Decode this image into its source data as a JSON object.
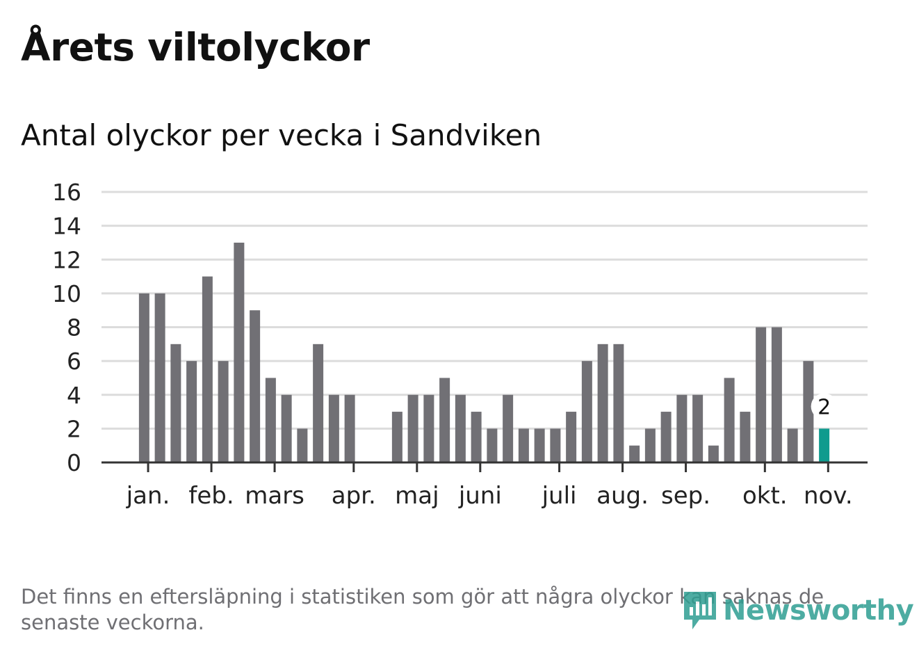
{
  "title": "Årets viltolyckor",
  "subtitle": "Antal olyckor per vecka i Sandviken",
  "footnote": "Det finns en eftersläpning i statistiken som gör att några olyckor kan saknas de senaste veckorna.",
  "brand": {
    "name": "Newsworthy",
    "color": "#2f9e92",
    "icon": "newsworthy-logo-icon"
  },
  "colors": {
    "bar": "#717075",
    "highlight": "#0f9b8e",
    "grid": "#dcdcdc",
    "axis": "#333333"
  },
  "chart_data": {
    "type": "bar",
    "title": "Antal olyckor per vecka i Sandviken",
    "xlabel": "",
    "ylabel": "",
    "ylim": [
      0,
      16
    ],
    "yticks": [
      0,
      2,
      4,
      6,
      8,
      10,
      12,
      14,
      16
    ],
    "grid": true,
    "weeks": 45,
    "values": [
      10,
      10,
      7,
      6,
      11,
      6,
      13,
      9,
      5,
      4,
      2,
      7,
      4,
      4,
      null,
      null,
      3,
      4,
      4,
      5,
      4,
      3,
      2,
      4,
      2,
      2,
      2,
      3,
      6,
      7,
      7,
      1,
      2,
      3,
      4,
      4,
      1,
      5,
      3,
      8,
      8,
      2,
      6,
      2
    ],
    "highlight_index": 43,
    "highlight_label": "2",
    "month_ticks": [
      {
        "label": "jan.",
        "week": 0.25
      },
      {
        "label": "feb.",
        "week": 4.25
      },
      {
        "label": "mars",
        "week": 8.25
      },
      {
        "label": "apr.",
        "week": 13.25
      },
      {
        "label": "maj",
        "week": 17.25
      },
      {
        "label": "juni",
        "week": 21.25
      },
      {
        "label": "juli",
        "week": 26.25
      },
      {
        "label": "aug.",
        "week": 30.25
      },
      {
        "label": "sep.",
        "week": 34.25
      },
      {
        "label": "okt.",
        "week": 39.25
      },
      {
        "label": "nov.",
        "week": 43.25
      }
    ]
  }
}
